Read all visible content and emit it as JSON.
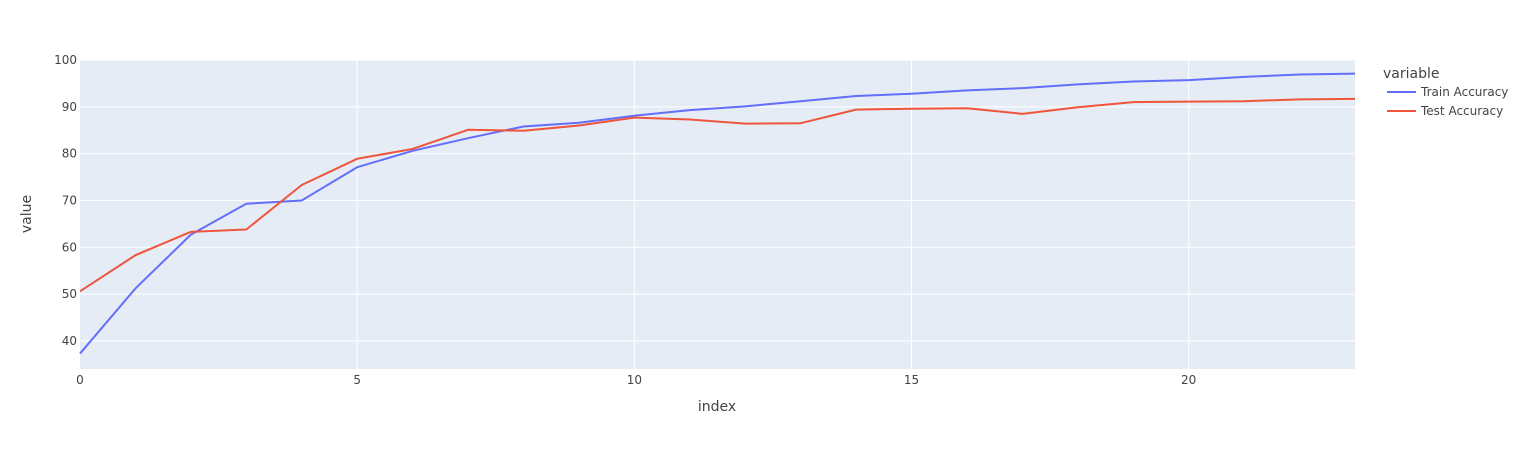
{
  "chart_data": {
    "type": "line",
    "xlabel": "index",
    "ylabel": "value",
    "legend_title": "variable",
    "legend_position": "right",
    "grid": true,
    "xlim": [
      0,
      23
    ],
    "ylim": [
      34,
      100
    ],
    "x_ticks": [
      0,
      5,
      10,
      15,
      20
    ],
    "y_ticks": [
      40,
      50,
      60,
      70,
      80,
      90,
      100
    ],
    "x": [
      0,
      1,
      2,
      3,
      4,
      5,
      6,
      7,
      8,
      9,
      10,
      11,
      12,
      13,
      14,
      15,
      16,
      17,
      18,
      19,
      20,
      21,
      22,
      23
    ],
    "series": [
      {
        "name": "Train Accuracy",
        "color": "#636efa",
        "values": [
          37.3,
          51.2,
          62.7,
          69.3,
          70.0,
          77.1,
          80.6,
          83.3,
          85.8,
          86.6,
          88.1,
          89.3,
          90.1,
          91.2,
          92.3,
          92.8,
          93.5,
          94.0,
          94.8,
          95.4,
          95.7,
          96.4,
          96.9,
          97.1
        ]
      },
      {
        "name": "Test Accuracy",
        "color": "#ef553b",
        "values": [
          50.6,
          58.3,
          63.3,
          63.8,
          73.3,
          78.9,
          81.0,
          85.1,
          84.9,
          86.0,
          87.7,
          87.3,
          86.4,
          86.5,
          89.4,
          89.6,
          89.7,
          88.5,
          89.9,
          91.0,
          91.1,
          91.2,
          91.6,
          91.7
        ]
      }
    ]
  }
}
